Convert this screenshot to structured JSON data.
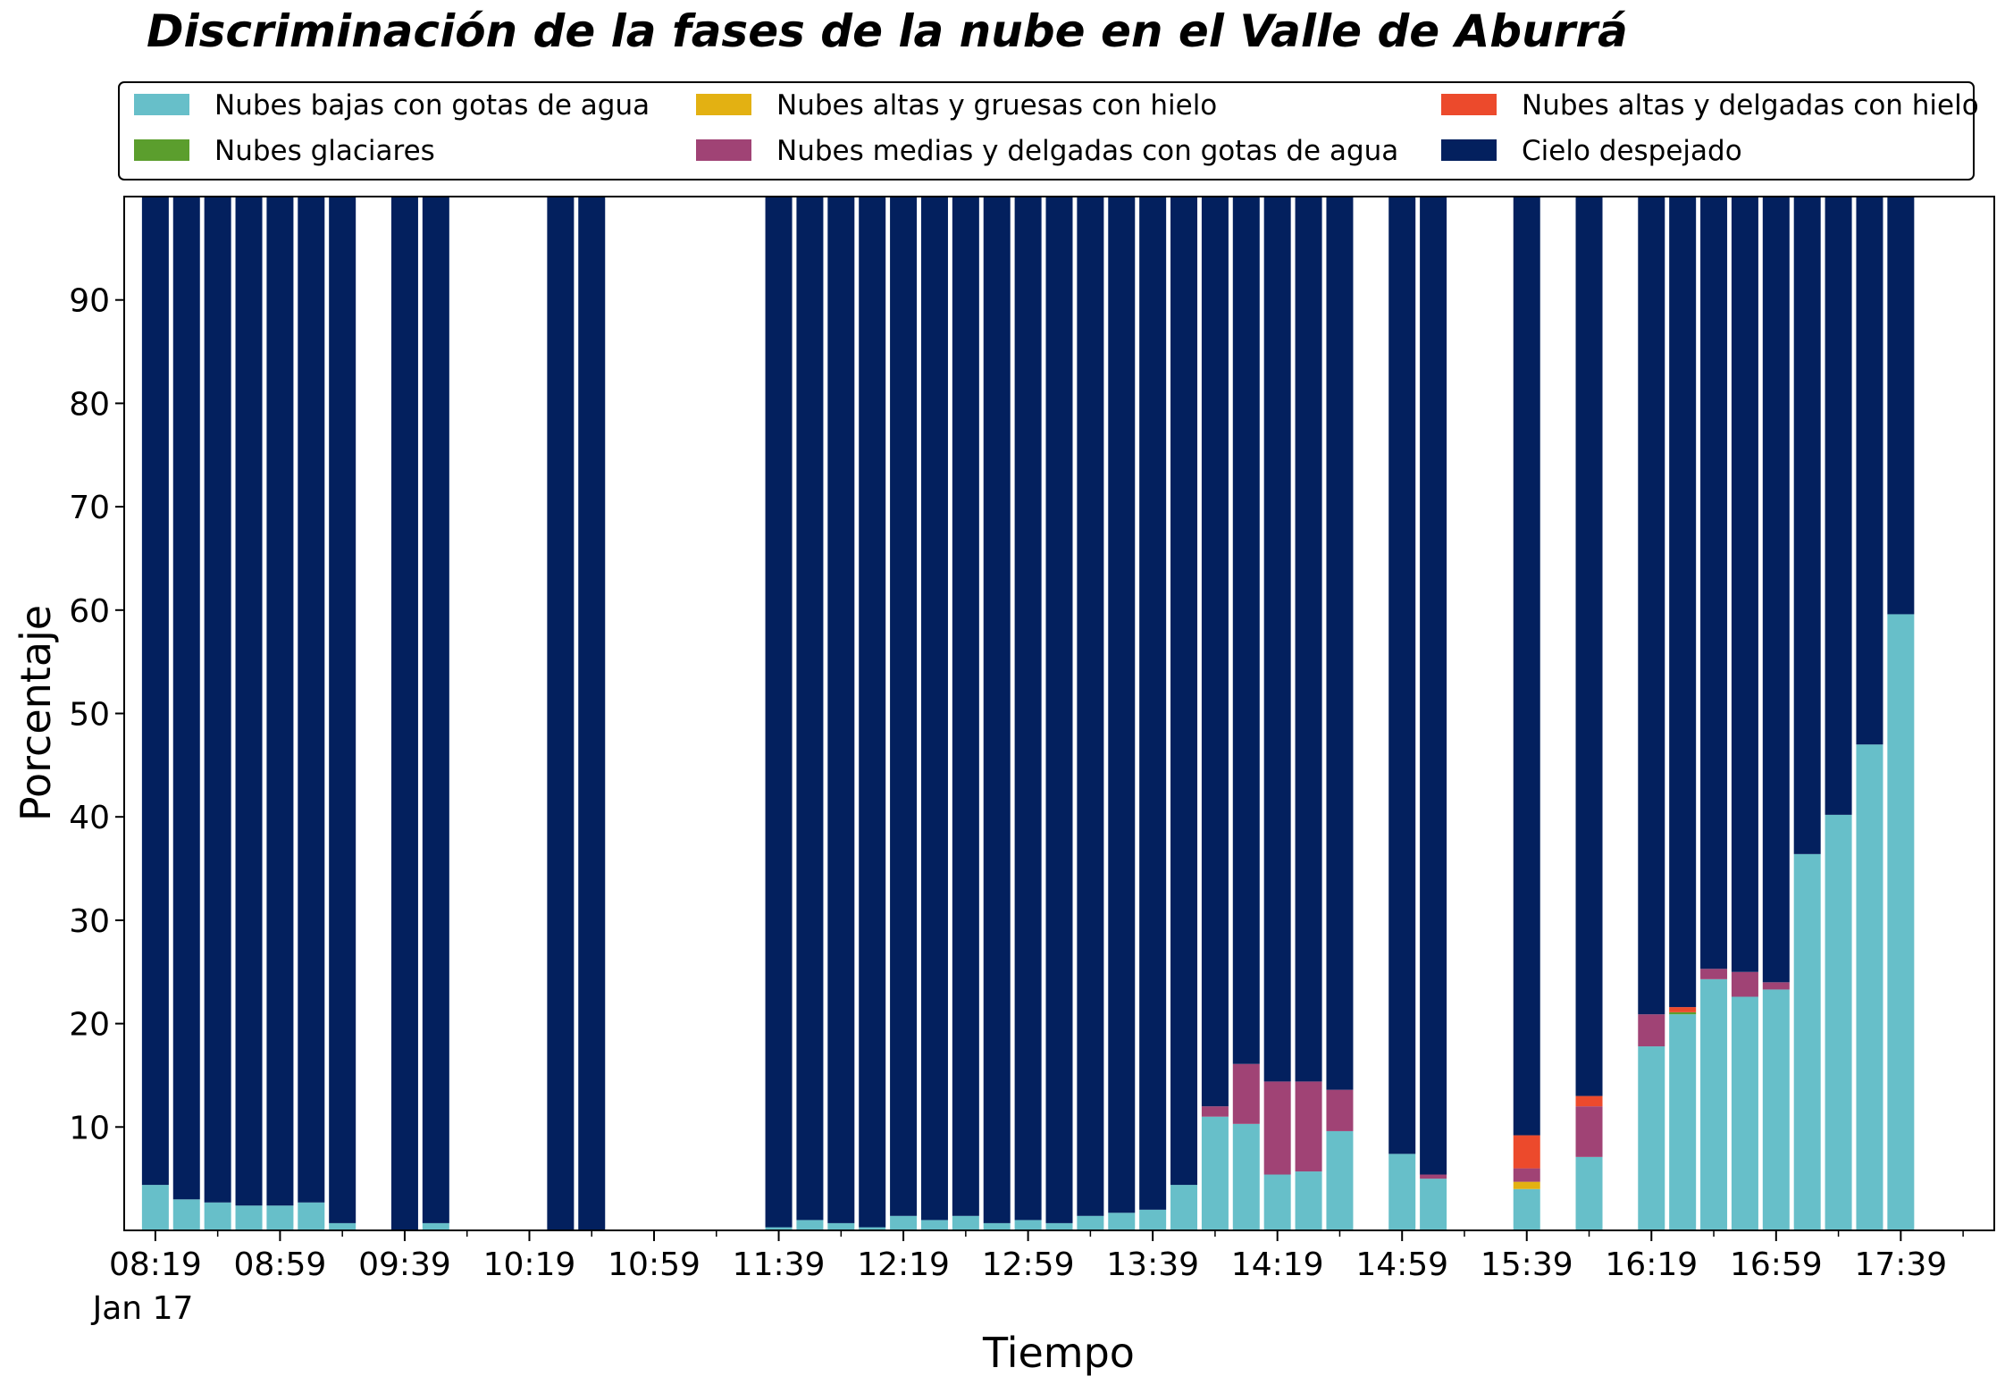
{
  "chart_data": {
    "type": "bar",
    "stacked": true,
    "title": "Discriminación de la fases de la nube en el Valle de Aburrá",
    "xlabel": "Tiempo",
    "ylabel": "Porcentaje",
    "ylim": [
      0,
      100
    ],
    "yticks": [
      10,
      20,
      30,
      40,
      50,
      60,
      70,
      80,
      90
    ],
    "xlim": [
      "08:09",
      "18:09"
    ],
    "x_tick_labels": [
      "08:19",
      "08:59",
      "09:39",
      "10:19",
      "10:59",
      "11:39",
      "12:19",
      "12:59",
      "13:39",
      "14:19",
      "14:59",
      "15:39",
      "16:19",
      "16:59",
      "17:39"
    ],
    "x_minor_ticks": [
      "08:39",
      "09:19",
      "09:59",
      "10:39",
      "11:19",
      "11:59",
      "12:39",
      "13:19",
      "13:59",
      "14:39",
      "15:19",
      "15:59",
      "16:39",
      "17:19",
      "17:59"
    ],
    "x_date_label": "Jan 17",
    "grid": false,
    "legend_position": "top",
    "x": [
      "08:19",
      "08:29",
      "08:39",
      "08:49",
      "08:59",
      "09:09",
      "09:19",
      "09:39",
      "09:49",
      "10:29",
      "10:39",
      "11:39",
      "11:49",
      "11:59",
      "12:09",
      "12:19",
      "12:29",
      "12:39",
      "12:49",
      "12:59",
      "13:09",
      "13:19",
      "13:29",
      "13:39",
      "13:49",
      "13:59",
      "14:09",
      "14:19",
      "14:29",
      "14:39",
      "14:59",
      "15:09",
      "15:39",
      "15:59",
      "16:19",
      "16:29",
      "16:39",
      "16:49",
      "16:59",
      "17:09",
      "17:19",
      "17:29",
      "17:39"
    ],
    "series": [
      {
        "name": "Nubes bajas con gotas de agua",
        "color": "#67BFC9",
        "values": [
          4.4,
          3.0,
          2.7,
          2.4,
          2.4,
          2.7,
          0.7,
          0,
          0.7,
          0,
          0,
          0.3,
          1.0,
          0.7,
          0.3,
          1.4,
          1.0,
          1.4,
          0.7,
          1.0,
          0.7,
          1.4,
          1.7,
          2.0,
          4.4,
          11.0,
          10.3,
          5.4,
          5.7,
          9.6,
          7.4,
          5.0,
          4.0,
          7.1,
          17.8,
          20.9,
          24.3,
          22.6,
          23.3,
          36.4,
          40.2,
          47.0,
          59.6
        ]
      },
      {
        "name": "Nubes glaciares",
        "color": "#5B9E2D",
        "values": [
          0,
          0,
          0,
          0,
          0,
          0,
          0,
          0,
          0,
          0,
          0,
          0,
          0,
          0,
          0,
          0,
          0,
          0,
          0,
          0,
          0,
          0,
          0,
          0,
          0,
          0,
          0,
          0,
          0,
          0,
          0,
          0,
          0,
          0,
          0,
          0.2,
          0,
          0,
          0,
          0,
          0,
          0,
          0
        ]
      },
      {
        "name": "Nubes altas y gruesas con hielo",
        "color": "#E3B112",
        "values": [
          0,
          0,
          0,
          0,
          0,
          0,
          0,
          0,
          0,
          0,
          0,
          0,
          0,
          0,
          0,
          0,
          0,
          0,
          0,
          0,
          0,
          0,
          0,
          0,
          0,
          0,
          0,
          0,
          0,
          0,
          0,
          0,
          0.7,
          0,
          0,
          0,
          0,
          0,
          0,
          0,
          0,
          0,
          0
        ]
      },
      {
        "name": "Nubes medias y delgadas con gotas de agua",
        "color": "#A04375",
        "values": [
          0,
          0,
          0,
          0,
          0,
          0,
          0,
          0,
          0,
          0,
          0,
          0,
          0,
          0,
          0,
          0,
          0,
          0,
          0,
          0,
          0,
          0,
          0,
          0,
          0,
          1.0,
          5.8,
          9.0,
          8.7,
          4.0,
          0,
          0.4,
          1.3,
          4.9,
          3.1,
          0,
          1.0,
          2.4,
          0.7,
          0,
          0,
          0,
          0
        ]
      },
      {
        "name": "Nubes altas y delgadas con hielo",
        "color": "#EC4A2C",
        "values": [
          0,
          0,
          0,
          0,
          0,
          0,
          0,
          0,
          0,
          0,
          0,
          0,
          0,
          0,
          0,
          0,
          0,
          0,
          0,
          0,
          0,
          0,
          0,
          0,
          0,
          0,
          0,
          0,
          0,
          0,
          0,
          0,
          3.2,
          1.0,
          0,
          0.5,
          0,
          0,
          0,
          0,
          0,
          0,
          0
        ]
      },
      {
        "name": "Cielo despejado",
        "color": "#03205E",
        "values": [
          95.6,
          97.0,
          97.3,
          97.6,
          97.6,
          97.3,
          99.3,
          100,
          99.3,
          100,
          100,
          99.7,
          99.0,
          99.3,
          99.7,
          98.6,
          99.0,
          98.6,
          99.3,
          99.0,
          99.3,
          98.6,
          98.3,
          98.0,
          95.6,
          88.0,
          83.9,
          85.6,
          85.6,
          86.4,
          92.6,
          94.6,
          90.8,
          87.0,
          79.1,
          78.4,
          74.7,
          75.0,
          76.0,
          63.6,
          59.8,
          53.0,
          40.4
        ]
      }
    ]
  }
}
